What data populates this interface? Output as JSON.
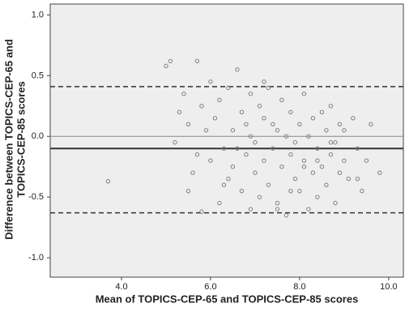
{
  "chart_data": {
    "type": "scatter",
    "xlabel": "Mean of TOPICS-CEP-65 and TOPICS-CEP-85 scores",
    "ylabel": [
      "Difference between TOPICS-CEP-65 and",
      "TOPICS-CEP-85 scores"
    ],
    "x": [
      3.7,
      5.0,
      5.1,
      5.2,
      5.3,
      5.4,
      5.5,
      5.5,
      5.6,
      5.7,
      5.8,
      5.8,
      5.9,
      6.0,
      6.0,
      6.1,
      6.2,
      6.2,
      6.3,
      6.4,
      6.4,
      6.5,
      6.5,
      6.6,
      6.7,
      6.7,
      6.8,
      6.8,
      6.9,
      6.9,
      7.0,
      7.0,
      7.1,
      7.1,
      7.2,
      7.2,
      7.3,
      7.3,
      7.4,
      7.4,
      7.5,
      7.5,
      7.6,
      7.6,
      7.7,
      7.7,
      7.8,
      7.8,
      7.9,
      7.9,
      8.0,
      8.0,
      8.1,
      8.1,
      8.2,
      8.2,
      8.3,
      8.3,
      8.4,
      8.4,
      8.5,
      8.5,
      8.6,
      8.6,
      8.7,
      8.7,
      8.8,
      8.8,
      8.9,
      8.9,
      9.0,
      9.0,
      9.1,
      9.2,
      9.3,
      9.4,
      9.5,
      9.6,
      9.8,
      5.7,
      6.3,
      6.9,
      7.5,
      8.1,
      8.7,
      9.3,
      7.2,
      7.8,
      6.6,
      8.4
    ],
    "values": [
      -0.37,
      0.58,
      0.62,
      -0.05,
      0.2,
      0.35,
      -0.45,
      0.1,
      -0.3,
      0.62,
      -0.62,
      0.25,
      0.05,
      -0.2,
      0.45,
      0.15,
      -0.55,
      0.3,
      -0.1,
      0.4,
      -0.35,
      0.05,
      -0.25,
      0.55,
      -0.45,
      0.2,
      0.1,
      -0.15,
      -0.6,
      0.35,
      -0.05,
      -0.3,
      0.25,
      -0.5,
      0.15,
      -0.2,
      0.4,
      -0.4,
      -0.1,
      0.1,
      -0.55,
      0.05,
      -0.25,
      0.3,
      -0.65,
      0.0,
      -0.15,
      0.2,
      -0.35,
      -0.05,
      -0.45,
      0.1,
      -0.2,
      0.35,
      -0.6,
      0.0,
      -0.3,
      0.15,
      -0.1,
      -0.5,
      0.2,
      -0.25,
      -0.4,
      0.05,
      -0.15,
      0.25,
      -0.55,
      -0.05,
      0.1,
      -0.3,
      -0.2,
      0.05,
      -0.35,
      0.15,
      -0.1,
      -0.45,
      -0.2,
      0.1,
      -0.3,
      -0.15,
      -0.4,
      0.0,
      -0.6,
      -0.25,
      -0.05,
      -0.35,
      0.45,
      -0.45,
      -0.1,
      -0.2
    ],
    "color": "#808080",
    "xlim": [
      2.4,
      10.33
    ],
    "ylim": [
      -1.16,
      1.09
    ],
    "xticks": [
      {
        "value": 4,
        "label": "4.0"
      },
      {
        "value": 6,
        "label": "6.0"
      },
      {
        "value": 8,
        "label": "8.0"
      },
      {
        "value": 10,
        "label": "10.0"
      }
    ],
    "yticks": [
      {
        "value": 1,
        "label": "1.0"
      },
      {
        "value": 0.5,
        "label": "0.5"
      },
      {
        "value": 0,
        "label": "0.0"
      },
      {
        "value": -0.5,
        "label": "-0.5"
      },
      {
        "value": -1,
        "label": "-1.0"
      }
    ],
    "reference_lines": [
      {
        "value": 0.41,
        "style": "dashed"
      },
      {
        "value": 0,
        "style": "thin"
      },
      {
        "value": -0.1,
        "style": "thick"
      },
      {
        "value": -0.63,
        "style": "dashed"
      }
    ]
  }
}
